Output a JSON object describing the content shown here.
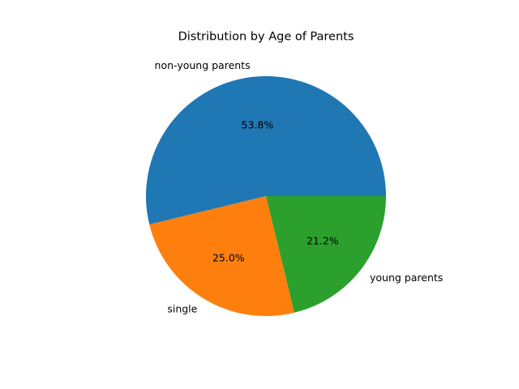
{
  "chart_data": {
    "type": "pie",
    "title": "Distribution by Age of Parents",
    "categories": [
      "non-young parents",
      "single",
      "young parents"
    ],
    "values": [
      53.8,
      25.0,
      21.2
    ],
    "value_labels": [
      "53.8%",
      "25.0%",
      "21.2%"
    ],
    "colors": [
      "#1f77b4",
      "#ff7f0e",
      "#2ca02c"
    ],
    "start_angle_deg": 0,
    "direction": "counterclockwise",
    "legend": "none"
  }
}
